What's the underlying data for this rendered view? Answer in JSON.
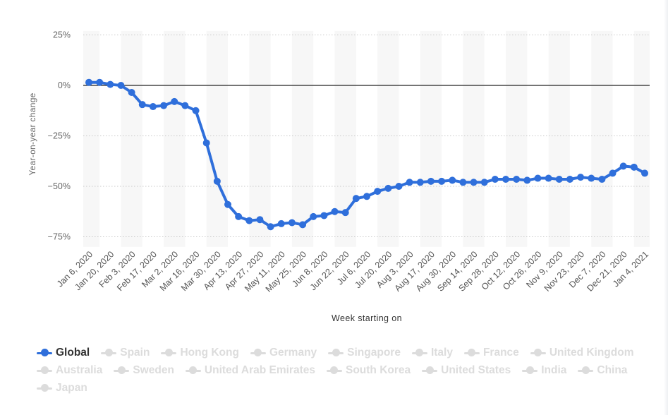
{
  "chart_data": {
    "type": "line",
    "title": "",
    "xlabel": "Week starting on",
    "ylabel": "Year-on-year change",
    "ylim": [
      -80,
      27
    ],
    "yticks": [
      25,
      0,
      -25,
      -50,
      -75
    ],
    "ytick_labels": [
      "25%",
      "0%",
      "−25%",
      "−50%",
      "−75%"
    ],
    "x_tick_labels": [
      "Jan 6, 2020",
      "Jan 20, 2020",
      "Feb 3, 2020",
      "Feb 17, 2020",
      "Mar 2, 2020",
      "Mar 16, 2020",
      "Mar 30, 2020",
      "Apr 13, 2020",
      "Apr 27, 2020",
      "May 11, 2020",
      "May 25, 2020",
      "Jun 8, 2020",
      "Jun 22, 2020",
      "Jul 6, 2020",
      "Jul 20, 2020",
      "Aug 3, 2020",
      "Aug 17, 2020",
      "Aug 30, 2020",
      "Sep 14, 2020",
      "Sep 28, 2020",
      "Oct 12, 2020",
      "Oct 26, 2020",
      "Nov 9, 2020",
      "Nov 23, 2020",
      "Dec 7, 2020",
      "Dec 21, 2020",
      "Jan 4, 2021"
    ],
    "grid": true,
    "legend_position": "bottom",
    "series": [
      {
        "name": "Global",
        "color": "#2f6fdb",
        "visible": true,
        "values": [
          1.5,
          1.5,
          0.5,
          0,
          -3.5,
          -9.5,
          -10.5,
          -10,
          -8,
          -10,
          -12.5,
          -28.5,
          -47.5,
          -59,
          -65,
          -67,
          -66.5,
          -70,
          -68.5,
          -68,
          -69,
          -65,
          -64.5,
          -62.5,
          -63,
          -56,
          -55,
          -52.5,
          -51,
          -50,
          -48,
          -48,
          -47.5,
          -47.5,
          -47,
          -48,
          -48,
          -48,
          -46.5,
          -46.5,
          -46.5,
          -47,
          -46,
          -46,
          -46.5,
          -46.5,
          -45.5,
          -46,
          -46.5,
          -43.5,
          -40,
          -40.5,
          -43.5
        ]
      },
      {
        "name": "Spain",
        "color": "#dcdcdc",
        "visible": false,
        "values": []
      },
      {
        "name": "Hong Kong",
        "color": "#dcdcdc",
        "visible": false,
        "values": []
      },
      {
        "name": "Germany",
        "color": "#dcdcdc",
        "visible": false,
        "values": []
      },
      {
        "name": "Singapore",
        "color": "#dcdcdc",
        "visible": false,
        "values": []
      },
      {
        "name": "Italy",
        "color": "#dcdcdc",
        "visible": false,
        "values": []
      },
      {
        "name": "France",
        "color": "#dcdcdc",
        "visible": false,
        "values": []
      },
      {
        "name": "United Kingdom",
        "color": "#dcdcdc",
        "visible": false,
        "values": []
      },
      {
        "name": "Australia",
        "color": "#dcdcdc",
        "visible": false,
        "values": []
      },
      {
        "name": "Sweden",
        "color": "#dcdcdc",
        "visible": false,
        "values": []
      },
      {
        "name": "United Arab Emirates",
        "color": "#dcdcdc",
        "visible": false,
        "values": []
      },
      {
        "name": "South Korea",
        "color": "#dcdcdc",
        "visible": false,
        "values": []
      },
      {
        "name": "United States",
        "color": "#dcdcdc",
        "visible": false,
        "values": []
      },
      {
        "name": "India",
        "color": "#dcdcdc",
        "visible": false,
        "values": []
      },
      {
        "name": "China",
        "color": "#dcdcdc",
        "visible": false,
        "values": []
      },
      {
        "name": "Japan",
        "color": "#dcdcdc",
        "visible": false,
        "values": []
      }
    ]
  }
}
